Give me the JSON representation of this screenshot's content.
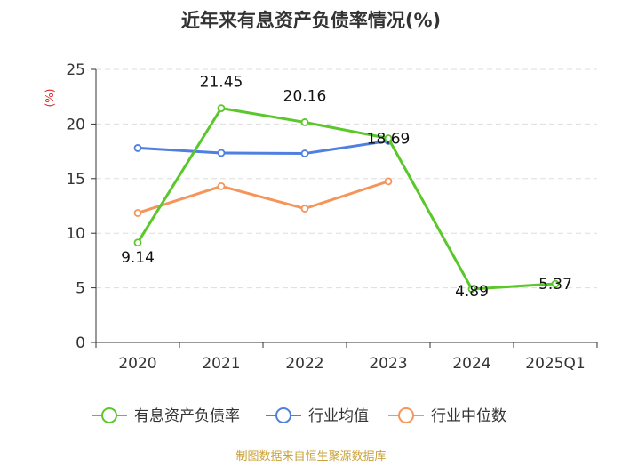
{
  "chart_data": {
    "type": "line",
    "title": "近年来有息资产负债率情况(%)",
    "ylabel": "(%)",
    "xlabel": "",
    "categories": [
      "2020",
      "2021",
      "2022",
      "2023",
      "2024",
      "2025Q1"
    ],
    "ylim": [
      0,
      25
    ],
    "yticks": [
      0,
      5,
      10,
      15,
      20,
      25
    ],
    "grid": true,
    "legend_position": "bottom",
    "series": [
      {
        "name": "有息资产负债率",
        "color": "#5ac72a",
        "values": [
          9.14,
          21.45,
          20.16,
          18.69,
          4.89,
          5.37
        ],
        "show_labels": true
      },
      {
        "name": "行业均值",
        "color": "#4f7fe0",
        "values": [
          17.8,
          17.35,
          17.3,
          18.45,
          null,
          null
        ],
        "show_labels": false
      },
      {
        "name": "行业中位数",
        "color": "#f5955a",
        "values": [
          11.85,
          14.3,
          12.25,
          14.75,
          null,
          null
        ],
        "show_labels": false
      }
    ],
    "data_labels": [
      "9.14",
      "21.45",
      "20.16",
      "18.69",
      "4.89",
      "5.37"
    ],
    "source": "制图数据来自恒生聚源数据库"
  }
}
